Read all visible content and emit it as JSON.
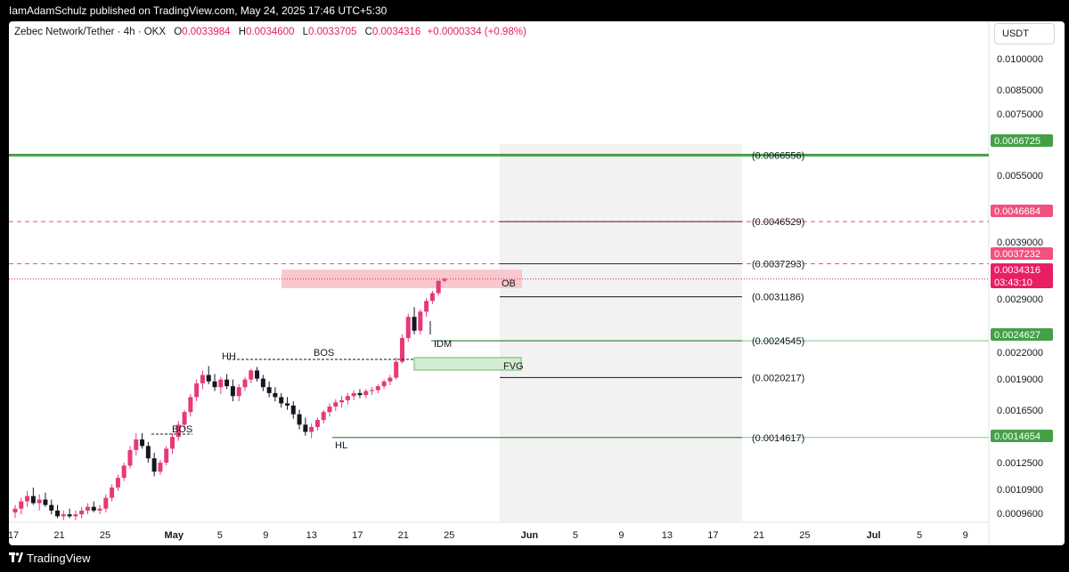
{
  "header": {
    "published": "IamAdamSchulz published on TradingView.com, May 24, 2025 17:46 UTC+5:30"
  },
  "legend": {
    "symbol": "Zebec Network/Tether · 4h · OKX",
    "o_label": "O",
    "o": "0.0033984",
    "h_label": "H",
    "h": "0.0034600",
    "l_label": "L",
    "l": "0.0033705",
    "c_label": "C",
    "c": "0.0034316",
    "change": "+0.0000334 (+0.98%)"
  },
  "unit_button": "USDT",
  "footer": {
    "brand": "TradingView"
  },
  "chart_data": {
    "type": "candlestick",
    "scale": "log",
    "ylim": [
      0.00093,
      0.0118
    ],
    "x_ticks": [
      "17",
      "21",
      "25",
      "May",
      "5",
      "9",
      "13",
      "17",
      "21",
      "25",
      "Jun",
      "5",
      "9",
      "13",
      "17",
      "21",
      "25",
      "Jul",
      "5",
      "9"
    ],
    "y_ticks": [
      "0.0100000",
      "0.0085000",
      "0.0075000",
      "0.0065000",
      "0.0055000",
      "0.0045000",
      "0.0039000",
      "0.0029000",
      "0.0022000",
      "0.0019000",
      "0.0016500",
      "0.0012500",
      "0.0010900",
      "0.0009600"
    ],
    "price_badges": [
      {
        "value": "0.0066725",
        "color": "#43a047"
      },
      {
        "value": "0.0046684",
        "color": "#f0517e"
      },
      {
        "value": "0.0037232",
        "color": "#f0517e"
      },
      {
        "value": "0.0034316",
        "sub": "03:43:10",
        "color": "#e91e63"
      },
      {
        "value": "0.0024627",
        "color": "#43a047"
      },
      {
        "value": "0.0014654",
        "color": "#43a047"
      }
    ],
    "levels": [
      {
        "value": 0.0066725,
        "label": "(0.0066556)",
        "style": "solid",
        "color": "#43a047"
      },
      {
        "value": 0.0046684,
        "label": "(0.0046529)",
        "style": "dashed",
        "color": "#f0517e"
      },
      {
        "value": 0.0037232,
        "label": "(0.0037293)",
        "style": "dashed",
        "color": "#f0517e"
      },
      {
        "value": 0.0031186,
        "label": "(0.0031186)",
        "style": "thin",
        "color": "#131722"
      },
      {
        "value": 0.0024627,
        "label": "(0.0024545)",
        "style": "solid",
        "color": "#43a047"
      },
      {
        "value": 0.0020217,
        "label": "(0.0020217)",
        "style": "thin",
        "color": "#131722"
      },
      {
        "value": 0.0014654,
        "label": "(0.0014617)",
        "style": "solid",
        "color": "#43a047"
      }
    ],
    "annotations": [
      "BOS",
      "HH",
      "BOS",
      "HL",
      "IDM",
      "OB",
      "FVG"
    ],
    "candles": [
      {
        "o": 0.00098,
        "h": 0.00102,
        "l": 0.00095,
        "c": 0.001
      },
      {
        "o": 0.001,
        "h": 0.00106,
        "l": 0.00097,
        "c": 0.00104
      },
      {
        "o": 0.00104,
        "h": 0.0011,
        "l": 0.00101,
        "c": 0.00107
      },
      {
        "o": 0.00107,
        "h": 0.00112,
        "l": 0.00102,
        "c": 0.00103
      },
      {
        "o": 0.00103,
        "h": 0.00108,
        "l": 0.00099,
        "c": 0.00105
      },
      {
        "o": 0.00105,
        "h": 0.00109,
        "l": 0.00101,
        "c": 0.00102
      },
      {
        "o": 0.00102,
        "h": 0.00105,
        "l": 0.00097,
        "c": 0.00099
      },
      {
        "o": 0.00099,
        "h": 0.00102,
        "l": 0.00095,
        "c": 0.00096
      },
      {
        "o": 0.00096,
        "h": 0.00099,
        "l": 0.00094,
        "c": 0.00097
      },
      {
        "o": 0.00097,
        "h": 0.001,
        "l": 0.00095,
        "c": 0.00096
      },
      {
        "o": 0.00096,
        "h": 0.00099,
        "l": 0.00094,
        "c": 0.00097
      },
      {
        "o": 0.00097,
        "h": 0.00101,
        "l": 0.00095,
        "c": 0.00099
      },
      {
        "o": 0.00099,
        "h": 0.00103,
        "l": 0.00097,
        "c": 0.00101
      },
      {
        "o": 0.00101,
        "h": 0.00104,
        "l": 0.00098,
        "c": 0.00099
      },
      {
        "o": 0.00099,
        "h": 0.00102,
        "l": 0.00097,
        "c": 0.001
      },
      {
        "o": 0.001,
        "h": 0.00108,
        "l": 0.00098,
        "c": 0.00106
      },
      {
        "o": 0.00106,
        "h": 0.00114,
        "l": 0.00104,
        "c": 0.00112
      },
      {
        "o": 0.00112,
        "h": 0.0012,
        "l": 0.0011,
        "c": 0.00118
      },
      {
        "o": 0.00118,
        "h": 0.00128,
        "l": 0.00116,
        "c": 0.00126
      },
      {
        "o": 0.00126,
        "h": 0.0014,
        "l": 0.00124,
        "c": 0.00137
      },
      {
        "o": 0.00137,
        "h": 0.0015,
        "l": 0.00133,
        "c": 0.00145
      },
      {
        "o": 0.00145,
        "h": 0.0015,
        "l": 0.00138,
        "c": 0.0014
      },
      {
        "o": 0.0014,
        "h": 0.00143,
        "l": 0.00128,
        "c": 0.00131
      },
      {
        "o": 0.00131,
        "h": 0.00135,
        "l": 0.00119,
        "c": 0.00122
      },
      {
        "o": 0.00122,
        "h": 0.0013,
        "l": 0.0012,
        "c": 0.00128
      },
      {
        "o": 0.00128,
        "h": 0.0014,
        "l": 0.00126,
        "c": 0.00138
      },
      {
        "o": 0.00138,
        "h": 0.0015,
        "l": 0.00134,
        "c": 0.00147
      },
      {
        "o": 0.00147,
        "h": 0.0016,
        "l": 0.00144,
        "c": 0.00157
      },
      {
        "o": 0.00157,
        "h": 0.0017,
        "l": 0.00153,
        "c": 0.00168
      },
      {
        "o": 0.00168,
        "h": 0.00185,
        "l": 0.00164,
        "c": 0.00182
      },
      {
        "o": 0.00182,
        "h": 0.002,
        "l": 0.00178,
        "c": 0.00196
      },
      {
        "o": 0.00196,
        "h": 0.0021,
        "l": 0.0019,
        "c": 0.00205
      },
      {
        "o": 0.00205,
        "h": 0.00215,
        "l": 0.00195,
        "c": 0.00198
      },
      {
        "o": 0.00198,
        "h": 0.00206,
        "l": 0.00188,
        "c": 0.00192
      },
      {
        "o": 0.00192,
        "h": 0.00203,
        "l": 0.00185,
        "c": 0.002
      },
      {
        "o": 0.002,
        "h": 0.00206,
        "l": 0.0019,
        "c": 0.00193
      },
      {
        "o": 0.00193,
        "h": 0.002,
        "l": 0.00178,
        "c": 0.00183
      },
      {
        "o": 0.00183,
        "h": 0.00195,
        "l": 0.00178,
        "c": 0.00192
      },
      {
        "o": 0.00192,
        "h": 0.00203,
        "l": 0.00188,
        "c": 0.002
      },
      {
        "o": 0.002,
        "h": 0.00212,
        "l": 0.00196,
        "c": 0.0021
      },
      {
        "o": 0.0021,
        "h": 0.00214,
        "l": 0.00198,
        "c": 0.00201
      },
      {
        "o": 0.00201,
        "h": 0.00205,
        "l": 0.00188,
        "c": 0.00192
      },
      {
        "o": 0.00192,
        "h": 0.00198,
        "l": 0.00182,
        "c": 0.00186
      },
      {
        "o": 0.00186,
        "h": 0.00192,
        "l": 0.00178,
        "c": 0.00182
      },
      {
        "o": 0.00182,
        "h": 0.00186,
        "l": 0.00172,
        "c": 0.00176
      },
      {
        "o": 0.00176,
        "h": 0.00182,
        "l": 0.0017,
        "c": 0.00174
      },
      {
        "o": 0.00174,
        "h": 0.00178,
        "l": 0.00162,
        "c": 0.00166
      },
      {
        "o": 0.00166,
        "h": 0.0017,
        "l": 0.00153,
        "c": 0.00157
      },
      {
        "o": 0.00157,
        "h": 0.00163,
        "l": 0.00148,
        "c": 0.00151
      },
      {
        "o": 0.00151,
        "h": 0.00158,
        "l": 0.00146,
        "c": 0.00155
      },
      {
        "o": 0.00155,
        "h": 0.00163,
        "l": 0.00152,
        "c": 0.00161
      },
      {
        "o": 0.00161,
        "h": 0.0017,
        "l": 0.00158,
        "c": 0.00168
      },
      {
        "o": 0.00168,
        "h": 0.00176,
        "l": 0.00164,
        "c": 0.00173
      },
      {
        "o": 0.00173,
        "h": 0.0018,
        "l": 0.00169,
        "c": 0.00177
      },
      {
        "o": 0.00177,
        "h": 0.00183,
        "l": 0.00172,
        "c": 0.00179
      },
      {
        "o": 0.00179,
        "h": 0.00186,
        "l": 0.00175,
        "c": 0.00183
      },
      {
        "o": 0.00183,
        "h": 0.00189,
        "l": 0.00179,
        "c": 0.00186
      },
      {
        "o": 0.00186,
        "h": 0.0019,
        "l": 0.00181,
        "c": 0.00184
      },
      {
        "o": 0.00184,
        "h": 0.0019,
        "l": 0.00181,
        "c": 0.00188
      },
      {
        "o": 0.00188,
        "h": 0.00192,
        "l": 0.00184,
        "c": 0.00189
      },
      {
        "o": 0.00189,
        "h": 0.00195,
        "l": 0.00186,
        "c": 0.00193
      },
      {
        "o": 0.00193,
        "h": 0.002,
        "l": 0.0019,
        "c": 0.00198
      },
      {
        "o": 0.00198,
        "h": 0.00205,
        "l": 0.00194,
        "c": 0.00202
      },
      {
        "o": 0.00202,
        "h": 0.00225,
        "l": 0.002,
        "c": 0.0022
      },
      {
        "o": 0.0022,
        "h": 0.00255,
        "l": 0.00218,
        "c": 0.0025
      },
      {
        "o": 0.0025,
        "h": 0.00285,
        "l": 0.00245,
        "c": 0.0028
      },
      {
        "o": 0.0028,
        "h": 0.00295,
        "l": 0.00255,
        "c": 0.0026
      },
      {
        "o": 0.0026,
        "h": 0.00292,
        "l": 0.00255,
        "c": 0.00288
      },
      {
        "o": 0.00288,
        "h": 0.0031,
        "l": 0.0028,
        "c": 0.00305
      },
      {
        "o": 0.00305,
        "h": 0.00322,
        "l": 0.003,
        "c": 0.00318
      },
      {
        "o": 0.00318,
        "h": 0.00338,
        "l": 0.00314,
        "c": 0.0034
      },
      {
        "o": 0.0033984,
        "h": 0.00346,
        "l": 0.0033705,
        "c": 0.0034316
      }
    ]
  }
}
